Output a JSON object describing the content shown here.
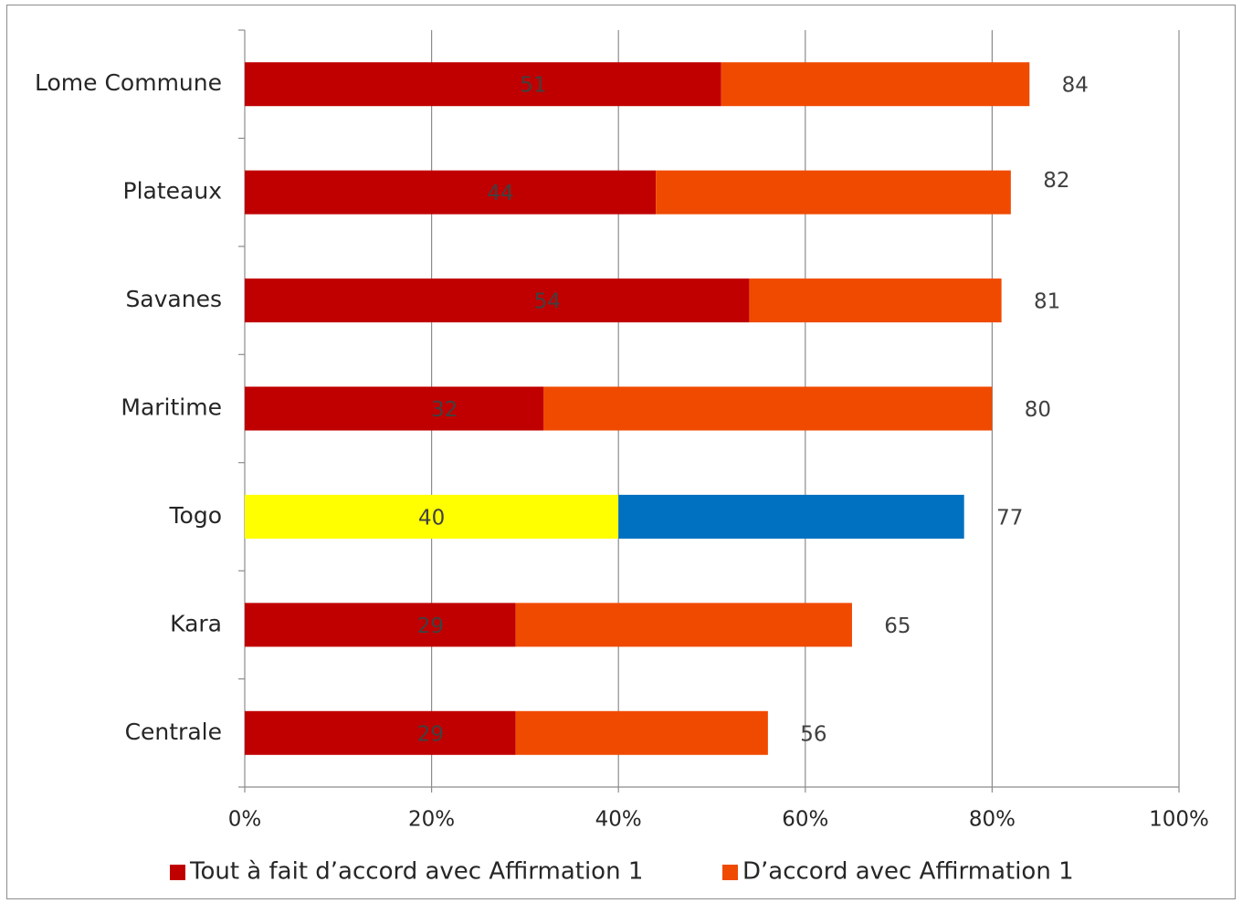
{
  "chart_data": {
    "type": "bar",
    "orientation": "horizontal",
    "stacked": true,
    "categories": [
      "Lome Commune",
      "Plateaux",
      "Savanes",
      "Maritime",
      "Togo",
      "Kara",
      "Centrale"
    ],
    "series": [
      {
        "name": "Tout à fait d’accord avec Affirmation 1",
        "color": "#c00000",
        "values": [
          51,
          44,
          54,
          32,
          40,
          29,
          29
        ],
        "labels": [
          "51",
          "44",
          "54",
          "32",
          "40",
          "29",
          "29"
        ]
      },
      {
        "name": "D’accord avec Affirmation 1",
        "color": "#f04a00",
        "values": [
          33,
          38,
          27,
          48,
          37,
          36,
          27
        ]
      }
    ],
    "totals": [
      "84",
      "82",
      "81",
      "80",
      "77",
      "65",
      "56"
    ],
    "highlight": {
      "category": "Togo",
      "colors": [
        "#ffff00",
        "#0070c0"
      ]
    },
    "xlim": [
      0,
      100
    ],
    "xticks": [
      "0%",
      "20%",
      "40%",
      "60%",
      "80%",
      "100%"
    ],
    "grid": true,
    "legend_position": "bottom"
  }
}
